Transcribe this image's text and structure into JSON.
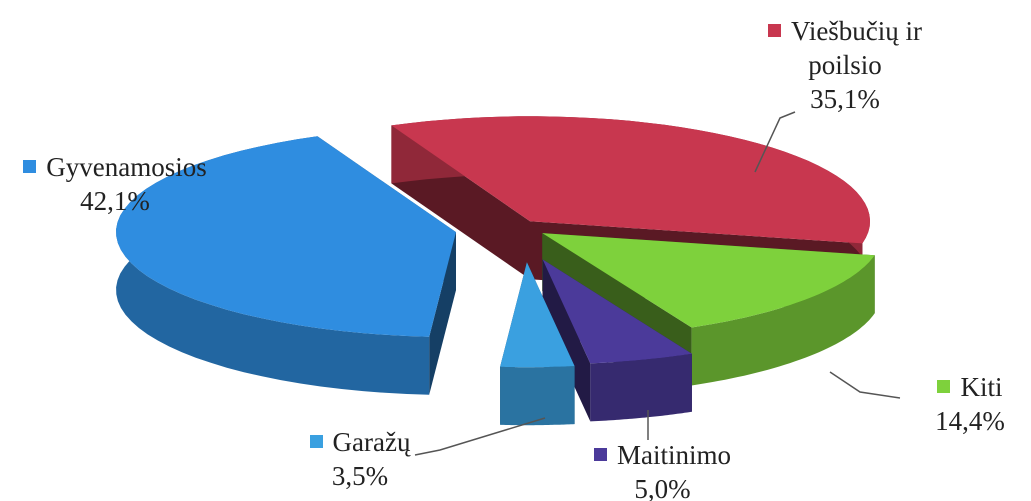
{
  "chart_data": {
    "type": "pie",
    "categories": [
      "Viešbučių ir poilsio",
      "Kiti",
      "Maitinimo",
      "Garažų",
      "Gyvenamosios"
    ],
    "values": [
      35.1,
      14.4,
      5.0,
      3.5,
      42.1
    ],
    "value_labels": [
      "35,1%",
      "14,4%",
      "5,0%",
      "3,5%",
      "42,1%"
    ],
    "colors": [
      "#c8374f",
      "#7ed13c",
      "#4b3a9a",
      "#3aa0e0",
      "#2f8de0"
    ]
  }
}
